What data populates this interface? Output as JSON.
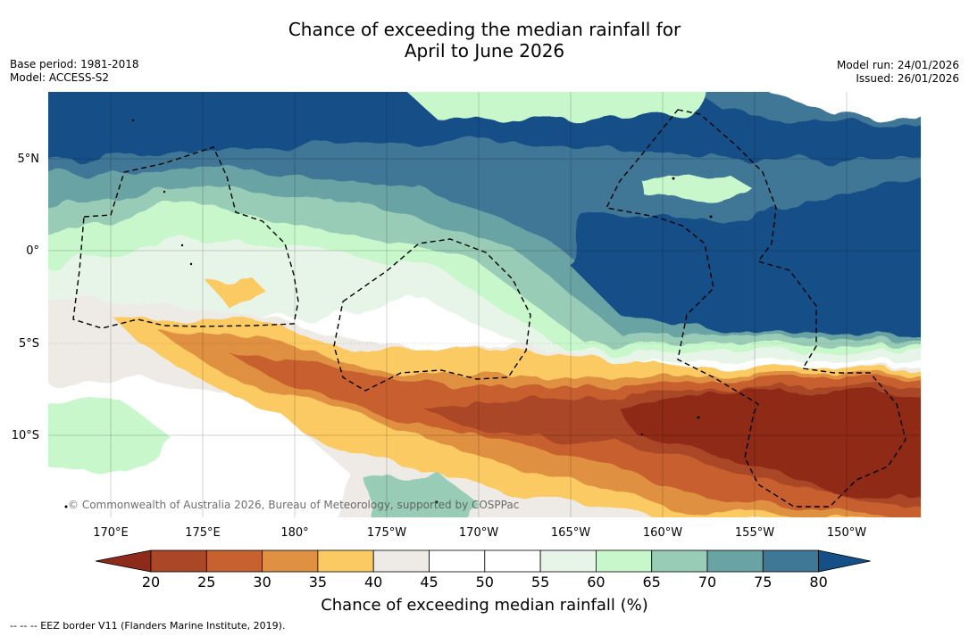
{
  "title": {
    "line1": "Chance of exceeding the median rainfall for",
    "line2": "April to June 2026"
  },
  "meta": {
    "base_period": "Base period: 1981-2018",
    "model": "Model: ACCESS-S2",
    "model_run": "Model run: 24/01/2026",
    "issued": "Issued: 26/01/2026"
  },
  "map": {
    "copyright": "© Commonwealth of Australia 2026, Bureau of Meteorology, supported by COSPPac",
    "lat_labels": [
      "5°N",
      "0°",
      "5°S",
      "10°S"
    ],
    "lon_labels": [
      "170°E",
      "175°E",
      "180°",
      "175°W",
      "170°W",
      "165°W",
      "160°W",
      "155°W",
      "150°W"
    ]
  },
  "colorbar": {
    "ticks": [
      "20",
      "25",
      "30",
      "35",
      "40",
      "45",
      "50",
      "55",
      "60",
      "65",
      "70",
      "75",
      "80"
    ],
    "colors": [
      "#8e2a19",
      "#aa4727",
      "#c7612f",
      "#df9040",
      "#fcca63",
      "#eeebe6",
      "#ffffff",
      "#ffffff",
      "#e7f5e8",
      "#c7f7cb",
      "#98ccb6",
      "#6aa3a3",
      "#3f7796",
      "#145087"
    ],
    "label": "Chance of exceeding median rainfall (%)"
  },
  "footnote": "-- -- -- EEZ border V11 (Flanders Marine Institute, 2019)."
}
